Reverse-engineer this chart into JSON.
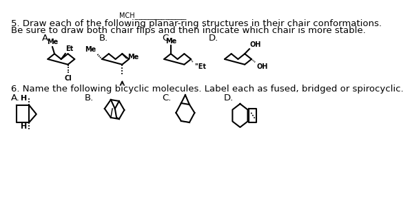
{
  "background_color": "#ffffff",
  "top_line": "MCH_______________",
  "question5_line1": "5. Draw each of the following planar-ring structures in their chair conformations.",
  "question5_line2": "Be sure to draw both chair flips and then indicate which chair is more stable.",
  "question6_line": "6. Name the following bicyclic molecules. Label each as fused, bridged or spirocyclic.",
  "labels_5": [
    "A.",
    "B.",
    "C.",
    "D."
  ],
  "labels_6": [
    "A.",
    "B.",
    "C.",
    "D."
  ],
  "text_color": "#000000",
  "font_size_main": 9.5,
  "font_size_label": 9.5
}
